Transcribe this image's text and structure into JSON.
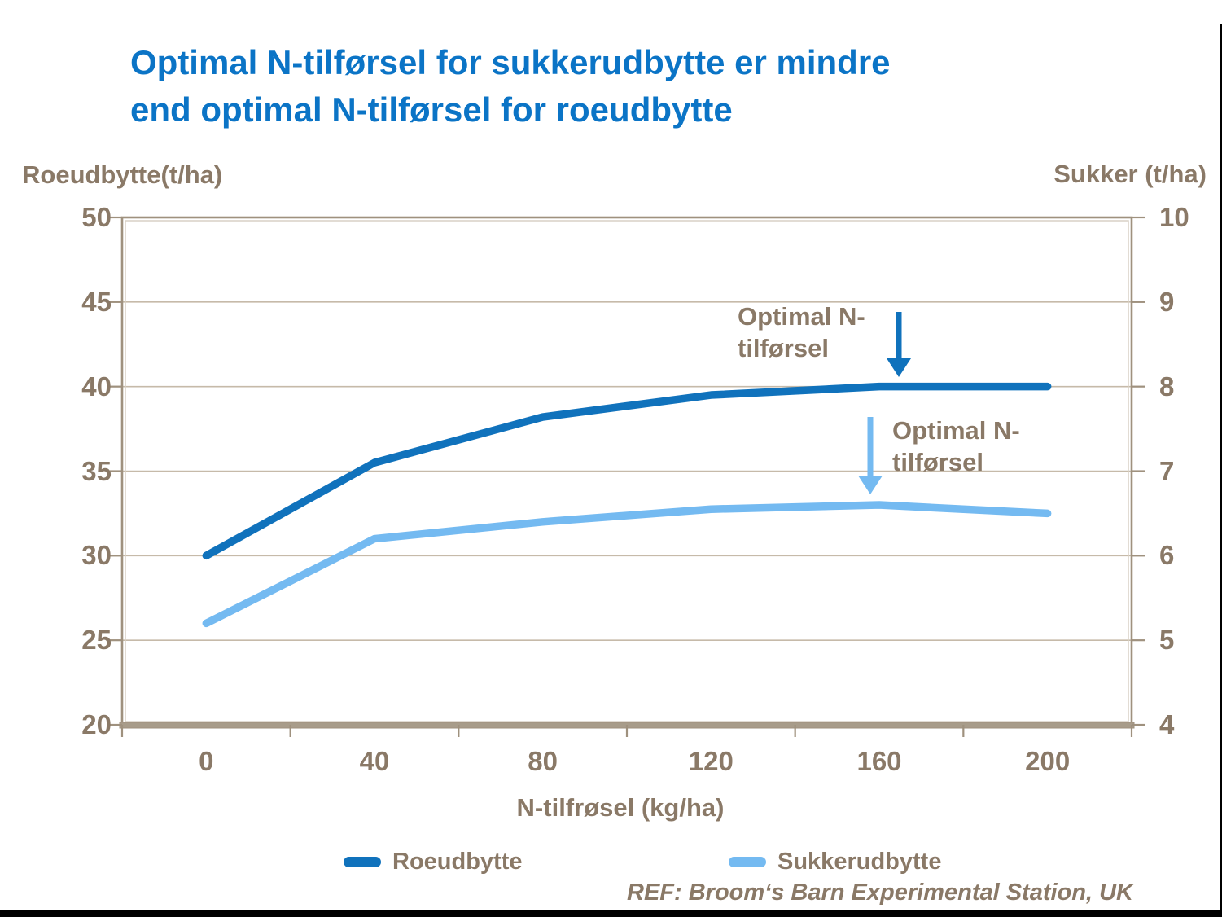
{
  "title": {
    "line1": "Optimal N-tilførsel for sukkerudbytte er mindre",
    "line2": "end optimal N-tilførsel for roeudbytte"
  },
  "chart_data": {
    "type": "line",
    "x_label": "N-tilfrøsel (kg/ha)",
    "x_categories": [
      0,
      40,
      80,
      120,
      160,
      200
    ],
    "x_minor_tick_step": 20,
    "left_axis": {
      "title": "Roeudbytte(t/ha)",
      "min": 20,
      "max": 50,
      "ticks": [
        50,
        45,
        40,
        35,
        30,
        25,
        20
      ]
    },
    "right_axis": {
      "title": "Sukker (t/ha)",
      "min": 4,
      "max": 10,
      "ticks": [
        10,
        9,
        8,
        7,
        6,
        5,
        4
      ]
    },
    "series": [
      {
        "name": "Roeudbytte",
        "axis": "left",
        "color": "#1072bc",
        "values": [
          30,
          35.5,
          38.2,
          39.5,
          40,
          40
        ]
      },
      {
        "name": "Sukkerudbytte",
        "axis": "right",
        "color": "#74baf1",
        "values": [
          5.2,
          6.2,
          6.4,
          6.55,
          6.6,
          6.5
        ]
      }
    ],
    "gridlines": {
      "horizontal": true,
      "color": "#c6baa9"
    },
    "legend_position": "bottom"
  },
  "annotations": [
    {
      "line1": "Optimal N-",
      "line2": "tilførsel",
      "arrow_color": "#1072bc",
      "points_to_series": "Roeudbytte"
    },
    {
      "line1": "Optimal N-",
      "line2": "tilførsel",
      "arrow_color": "#74baf1",
      "points_to_series": "Sukkerudbytte"
    }
  ],
  "legend": [
    {
      "label": "Roeudbytte",
      "color": "#1072bc"
    },
    {
      "label": "Sukkerudbytte",
      "color": "#74baf1"
    }
  ],
  "footer": {
    "ref": "REF: Broom‘s Barn Experimental Station, UK"
  },
  "colors": {
    "title_text": "#0b74c6",
    "axis_text": "#8a7967",
    "plot_border": "#9f917e",
    "plot_border_inner": "#d8d1c5",
    "axis_band": "#a89c8a",
    "gridline": "#c6baa9",
    "slide_edge": "#000000"
  }
}
